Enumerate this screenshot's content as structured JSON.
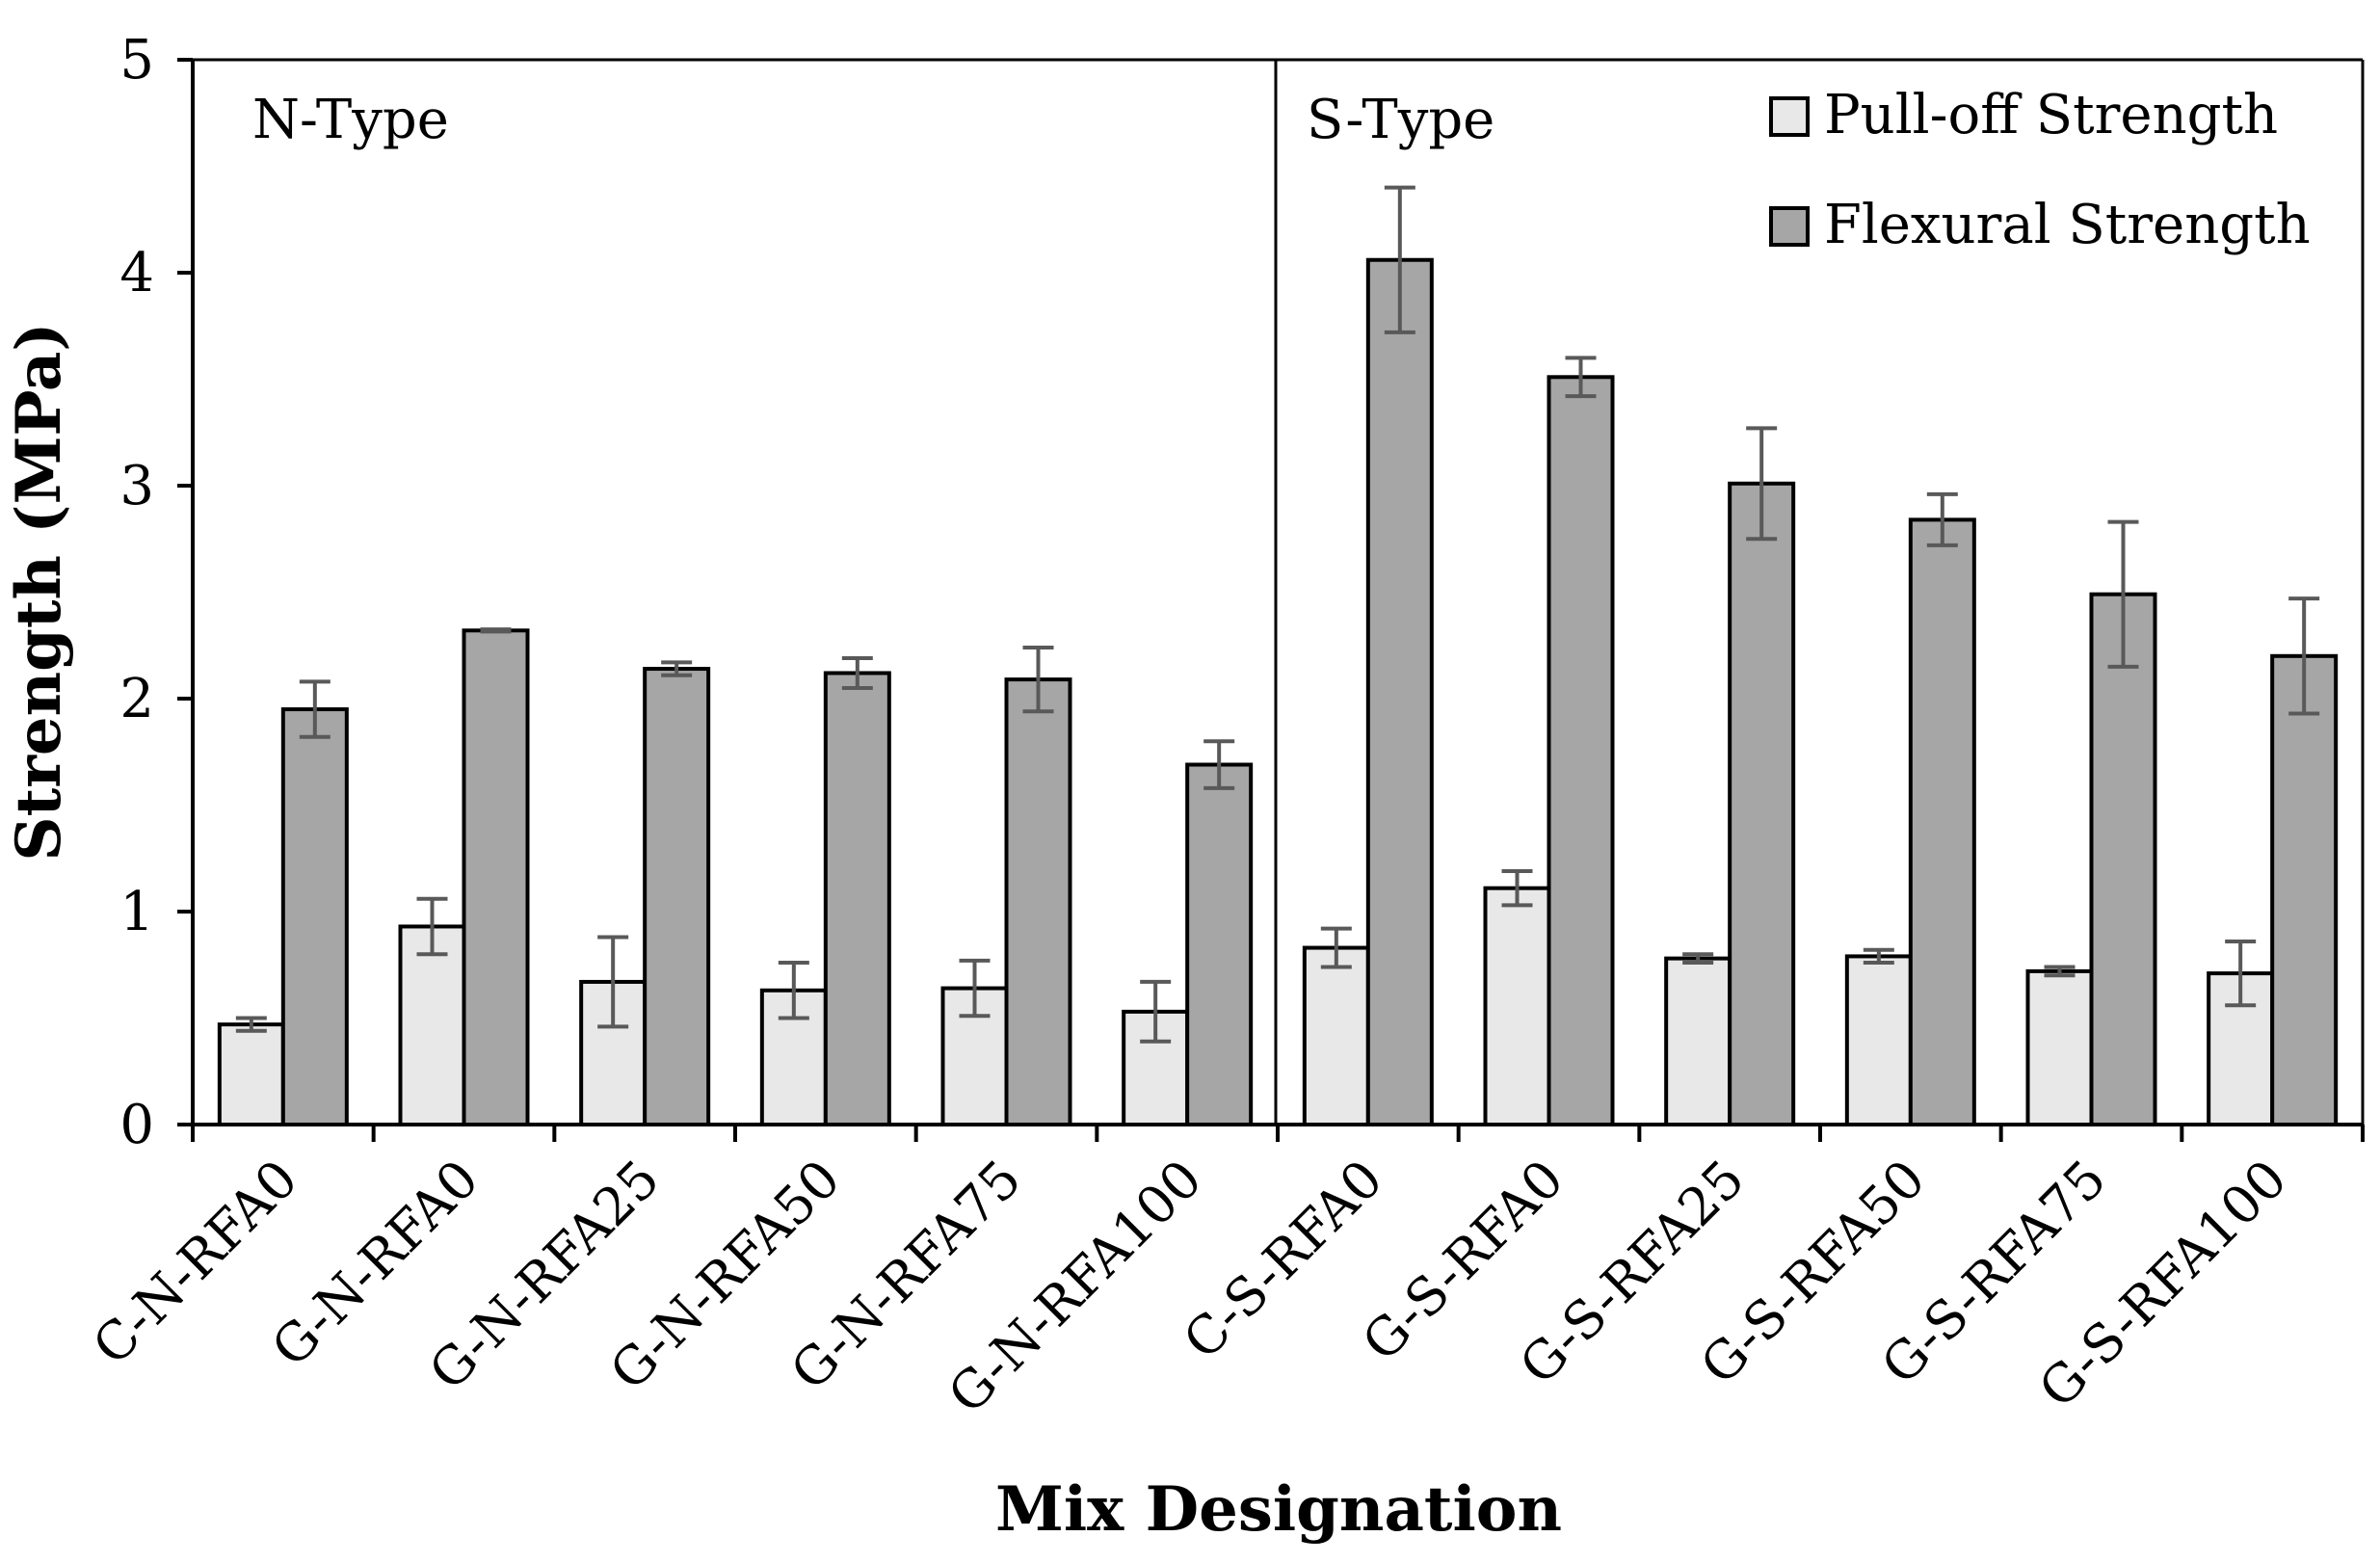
{
  "chart_data": {
    "type": "bar",
    "title": "",
    "xlabel": "Mix Designation",
    "ylabel": "Strength (MPa)",
    "ylim": [
      0,
      5
    ],
    "yticks": [
      0,
      1,
      2,
      3,
      4,
      5
    ],
    "grid": false,
    "legend_position": "top-right",
    "categories": [
      "C-N-RFA0",
      "G-N-RFA0",
      "G-N-RFA25",
      "G-N-RFA50",
      "G-N-RFA75",
      "G-N-RFA100",
      "C-S-RFA0",
      "G-S-RFA0",
      "G-S-RFA25",
      "G-S-RFA50",
      "G-S-RFA75",
      "G-S-RFA100"
    ],
    "groups": [
      {
        "label": "N-Type",
        "start": 0,
        "end": 5
      },
      {
        "label": "S-Type",
        "start": 6,
        "end": 11
      }
    ],
    "series": [
      {
        "name": "Pull-off Strength",
        "color": "#e8e8e8",
        "values": [
          0.47,
          0.93,
          0.67,
          0.63,
          0.64,
          0.53,
          0.83,
          1.11,
          0.78,
          0.79,
          0.72,
          0.71
        ],
        "errors": [
          0.03,
          0.13,
          0.21,
          0.13,
          0.13,
          0.14,
          0.09,
          0.08,
          0.02,
          0.03,
          0.02,
          0.15
        ]
      },
      {
        "name": "Flexural Strength",
        "color": "#a6a6a6",
        "values": [
          1.95,
          2.32,
          2.14,
          2.12,
          2.09,
          1.69,
          4.06,
          3.51,
          3.01,
          2.84,
          2.49,
          2.2
        ],
        "errors": [
          0.13,
          0.005,
          0.03,
          0.07,
          0.15,
          0.11,
          0.34,
          0.09,
          0.26,
          0.12,
          0.34,
          0.27
        ]
      }
    ]
  }
}
